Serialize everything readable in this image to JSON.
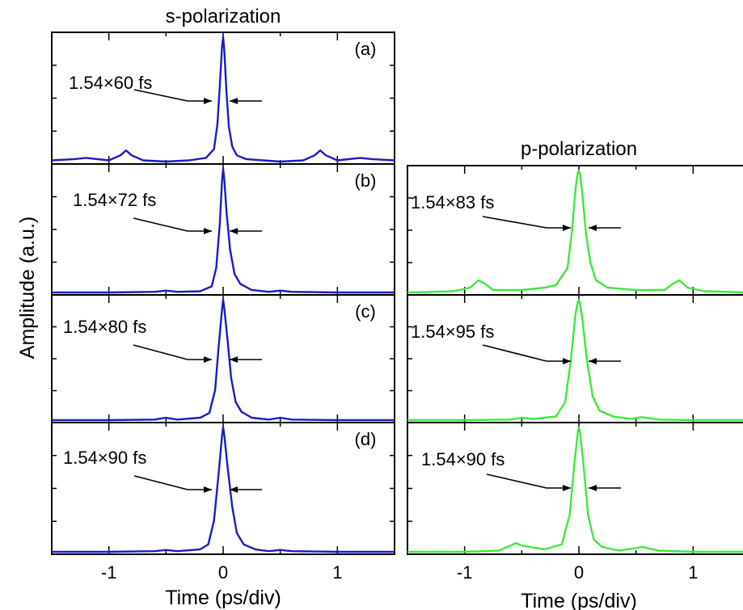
{
  "figure": {
    "ylabel": "Amplitude (a.u.)",
    "colors": {
      "s": "#1b1bc6",
      "p": "#3ee83e",
      "axis": "#000000"
    }
  },
  "chart_data": [
    {
      "type": "line",
      "group": "s-polarization",
      "title": "s-polarization",
      "xlabel": "Time (ps/div)",
      "xlim": [
        -1.5,
        1.5
      ],
      "xticks": [
        -1,
        0,
        1
      ],
      "panels": [
        {
          "label": "(a)",
          "fwhm_label": "1.54×60 fs",
          "x": [
            -1.5,
            -1.3,
            -1.2,
            -1.0,
            -0.9,
            -0.85,
            -0.8,
            -0.7,
            -0.5,
            -0.3,
            -0.15,
            -0.08,
            -0.05,
            -0.03,
            -0.01,
            0,
            0.01,
            0.03,
            0.05,
            0.08,
            0.12,
            0.2,
            0.35,
            0.5,
            0.7,
            0.8,
            0.85,
            0.9,
            1.0,
            1.2,
            1.3,
            1.5
          ],
          "y": [
            0.01,
            0.02,
            0.03,
            0.01,
            0.05,
            0.09,
            0.05,
            0.01,
            0.0,
            0.01,
            0.03,
            0.1,
            0.3,
            0.6,
            0.92,
            1.0,
            0.9,
            0.55,
            0.28,
            0.12,
            0.05,
            0.02,
            0.01,
            0.0,
            0.01,
            0.05,
            0.09,
            0.05,
            0.01,
            0.03,
            0.02,
            0.01
          ]
        },
        {
          "label": "(b)",
          "fwhm_label": "1.54×72 fs",
          "x": [
            -1.5,
            -1.0,
            -0.6,
            -0.5,
            -0.4,
            -0.2,
            -0.1,
            -0.06,
            -0.03,
            -0.01,
            0,
            0.01,
            0.03,
            0.06,
            0.1,
            0.15,
            0.25,
            0.4,
            0.5,
            0.6,
            1.0,
            1.5
          ],
          "y": [
            0.0,
            0.0,
            0.005,
            0.015,
            0.005,
            0.01,
            0.05,
            0.2,
            0.55,
            0.9,
            1.0,
            0.92,
            0.65,
            0.35,
            0.15,
            0.07,
            0.02,
            0.005,
            0.015,
            0.005,
            0.0,
            0.0
          ]
        },
        {
          "label": "(c)",
          "fwhm_label": "1.54×80 fs",
          "x": [
            -1.5,
            -1.0,
            -0.6,
            -0.5,
            -0.4,
            -0.2,
            -0.12,
            -0.07,
            -0.04,
            -0.01,
            0,
            0.01,
            0.04,
            0.07,
            0.11,
            0.16,
            0.25,
            0.4,
            0.5,
            0.6,
            1.0,
            1.5
          ],
          "y": [
            0.0,
            0.0,
            0.005,
            0.02,
            0.005,
            0.02,
            0.06,
            0.25,
            0.6,
            0.92,
            1.0,
            0.93,
            0.65,
            0.35,
            0.15,
            0.07,
            0.02,
            0.005,
            0.02,
            0.005,
            0.0,
            0.0
          ]
        },
        {
          "label": "(d)",
          "fwhm_label": "1.54×90 fs",
          "x": [
            -1.5,
            -1.0,
            -0.6,
            -0.5,
            -0.4,
            -0.2,
            -0.13,
            -0.08,
            -0.04,
            -0.01,
            0,
            0.01,
            0.04,
            0.08,
            0.12,
            0.18,
            0.28,
            0.4,
            0.5,
            0.6,
            1.0,
            1.5
          ],
          "y": [
            0.0,
            0.0,
            0.005,
            0.015,
            0.005,
            0.02,
            0.06,
            0.25,
            0.62,
            0.93,
            1.0,
            0.94,
            0.67,
            0.36,
            0.15,
            0.06,
            0.02,
            0.005,
            0.015,
            0.005,
            0.0,
            0.0
          ]
        }
      ]
    },
    {
      "type": "line",
      "group": "p-polarization",
      "title": "p-polarization",
      "xlabel": "Time (ps/div)",
      "xlim": [
        -1.5,
        1.5
      ],
      "xticks": [
        -1,
        0,
        1
      ],
      "panels": [
        {
          "label": "",
          "fwhm_label": "1.54×83 fs",
          "x": [
            -1.5,
            -1.1,
            -0.95,
            -0.88,
            -0.82,
            -0.75,
            -0.5,
            -0.3,
            -0.2,
            -0.1,
            -0.06,
            -0.03,
            -0.01,
            0,
            0.01,
            0.03,
            0.06,
            0.1,
            0.15,
            0.25,
            0.5,
            0.75,
            0.82,
            0.88,
            0.95,
            1.1,
            1.5
          ],
          "y": [
            0.0,
            0.01,
            0.04,
            0.1,
            0.07,
            0.02,
            0.02,
            0.04,
            0.06,
            0.2,
            0.5,
            0.85,
            0.98,
            1.0,
            0.97,
            0.82,
            0.5,
            0.25,
            0.1,
            0.04,
            0.02,
            0.02,
            0.07,
            0.1,
            0.04,
            0.01,
            0.0
          ]
        },
        {
          "label": "",
          "fwhm_label": "1.54×95 fs",
          "x": [
            -1.5,
            -1.0,
            -0.6,
            -0.5,
            -0.4,
            -0.2,
            -0.12,
            -0.07,
            -0.03,
            -0.01,
            0,
            0.01,
            0.03,
            0.07,
            0.12,
            0.18,
            0.3,
            0.45,
            0.55,
            0.7,
            1.0,
            1.5
          ],
          "y": [
            0.0,
            0.0,
            0.005,
            0.02,
            0.01,
            0.03,
            0.15,
            0.5,
            0.88,
            0.98,
            1.0,
            0.97,
            0.85,
            0.5,
            0.2,
            0.08,
            0.03,
            0.01,
            0.025,
            0.005,
            0.0,
            0.0
          ]
        },
        {
          "label": "",
          "fwhm_label": "1.54×90 fs",
          "x": [
            -1.5,
            -1.0,
            -0.7,
            -0.6,
            -0.55,
            -0.5,
            -0.3,
            -0.15,
            -0.08,
            -0.04,
            -0.01,
            0,
            0.01,
            0.04,
            0.08,
            0.13,
            0.2,
            0.35,
            0.5,
            0.55,
            0.6,
            0.7,
            1.0,
            1.5
          ],
          "y": [
            0.0,
            0.0,
            0.01,
            0.05,
            0.07,
            0.05,
            0.02,
            0.06,
            0.3,
            0.7,
            0.96,
            1.0,
            0.96,
            0.7,
            0.3,
            0.1,
            0.04,
            0.01,
            0.03,
            0.04,
            0.03,
            0.01,
            0.0,
            0.0
          ]
        }
      ]
    }
  ]
}
